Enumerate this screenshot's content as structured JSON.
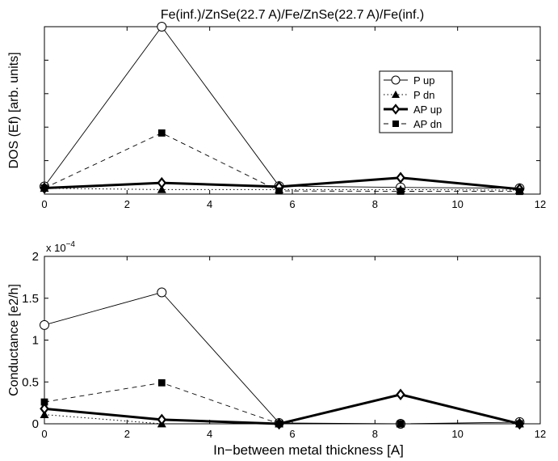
{
  "chart_data": [
    {
      "type": "line",
      "title": "Fe(inf.)/ZnSe(22.7 A)/Fe/ZnSe(22.7 A)/Fe(inf.)",
      "xlabel": "",
      "ylabel": "DOS (Ef) [arb. units]",
      "xlim": [
        0,
        12
      ],
      "ylim": [
        0,
        1
      ],
      "xticks": [
        "0",
        "2",
        "4",
        "6",
        "8",
        "10",
        "12"
      ],
      "y_tick_labels_shown": false,
      "grid": false,
      "legend_position": "top-right",
      "x": [
        0,
        2.84,
        5.68,
        8.62,
        11.5
      ],
      "series": [
        {
          "name": "P up",
          "values": [
            0.046,
            1.0,
            0.048,
            0.04,
            0.035
          ],
          "line": "solid-thin",
          "marker": "open-circle"
        },
        {
          "name": "P dn",
          "values": [
            0.035,
            0.027,
            0.027,
            0.027,
            0.024
          ],
          "line": "dotted",
          "marker": "filled-triangle"
        },
        {
          "name": "AP up",
          "values": [
            0.036,
            0.067,
            0.044,
            0.098,
            0.03
          ],
          "line": "solid-thick",
          "marker": "open-diamond"
        },
        {
          "name": "AP dn",
          "values": [
            0.036,
            0.365,
            0.019,
            0.017,
            0.016
          ],
          "line": "dashed",
          "marker": "filled-square"
        }
      ]
    },
    {
      "type": "line",
      "title": "",
      "xlabel": "In−between metal thickness [A]",
      "ylabel": "Conductance [e2/h]",
      "xlim": [
        0,
        12
      ],
      "ylim": [
        0,
        2
      ],
      "y_multiplier_base": "x 10",
      "y_multiplier_exponent": "−4",
      "xticks": [
        "0",
        "2",
        "4",
        "6",
        "8",
        "10",
        "12"
      ],
      "yticks": [
        "0",
        "0.5",
        "1",
        "1.5",
        "2"
      ],
      "grid": false,
      "x": [
        0,
        2.84,
        5.68,
        8.62,
        11.5
      ],
      "series": [
        {
          "name": "P up",
          "values": [
            1.18,
            1.57,
            0.01,
            0.0,
            0.02
          ],
          "line": "solid-thin",
          "marker": "open-circle"
        },
        {
          "name": "P dn",
          "values": [
            0.11,
            0.0,
            0.0,
            0.0,
            0.0
          ],
          "line": "dotted",
          "marker": "filled-triangle"
        },
        {
          "name": "AP up",
          "values": [
            0.18,
            0.05,
            0.0,
            0.35,
            0.0
          ],
          "line": "solid-thick",
          "marker": "open-diamond"
        },
        {
          "name": "AP dn",
          "values": [
            0.26,
            0.49,
            0.0,
            0.0,
            0.0
          ],
          "line": "dashed",
          "marker": "filled-square"
        }
      ]
    }
  ]
}
